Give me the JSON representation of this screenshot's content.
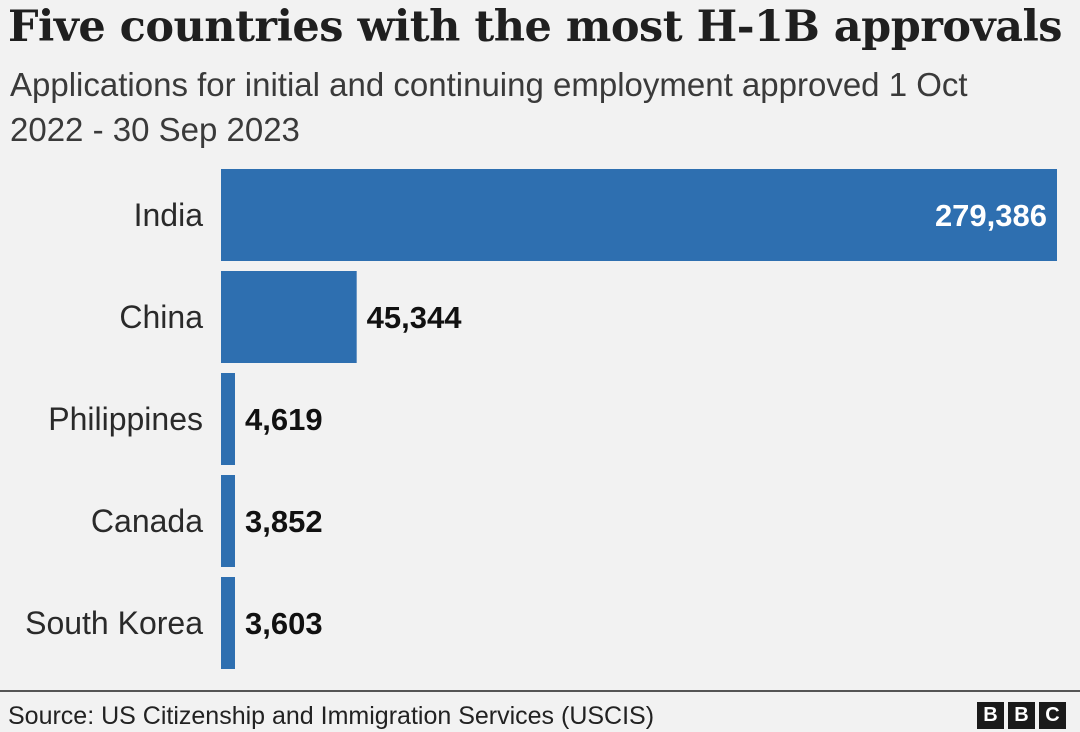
{
  "chart_data": {
    "type": "bar",
    "orientation": "horizontal",
    "title": "Five countries with the most H-1B approvals",
    "subtitle": "Applications for initial and continuing employment approved 1 Oct 2022 - 30 Sep 2023",
    "categories": [
      "India",
      "China",
      "Philippines",
      "Canada",
      "South Korea"
    ],
    "values": [
      279386,
      45344,
      4619,
      3852,
      3603
    ],
    "value_labels": [
      "279,386",
      "45,344",
      "4,619",
      "3,852",
      "3,603"
    ],
    "xlim": [
      0,
      279386
    ],
    "bar_color": "#2e6fb0",
    "grid": false,
    "legend": "none"
  },
  "footer": {
    "source": "Source: US Citizenship and Immigration Services (USCIS)",
    "logo_letters": [
      "B",
      "B",
      "C"
    ]
  }
}
